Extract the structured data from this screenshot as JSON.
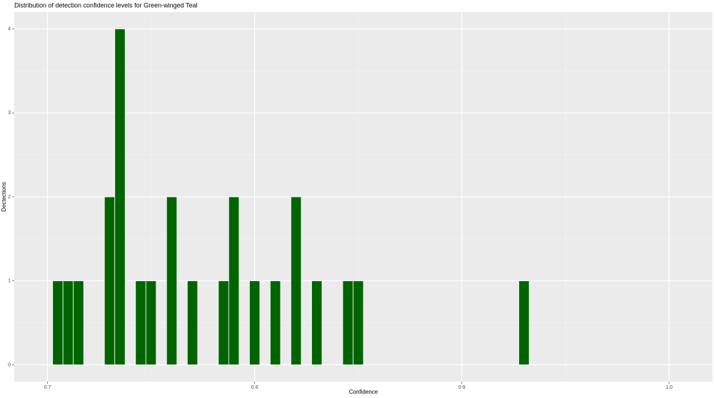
{
  "chart_data": {
    "type": "histogram",
    "title": "Distribution of detection confidence levels for Green-winged Teal",
    "x_label": "Confidence",
    "y_label": "Dectections",
    "bins": [
      0.7025,
      0.7075,
      0.7125,
      0.7175,
      0.7225,
      0.7275,
      0.7325,
      0.7375,
      0.7425,
      0.7475,
      0.7525,
      0.7575,
      0.7625,
      0.7675,
      0.7725,
      0.7775,
      0.7825,
      0.7875,
      0.7925,
      0.7975,
      0.8025,
      0.8075,
      0.8125,
      0.8175,
      0.8225,
      0.8275,
      0.8325,
      0.8375,
      0.8425,
      0.8475,
      0.8525,
      0.8575,
      0.8625,
      0.8675,
      0.8725,
      0.8775,
      0.8825,
      0.8875,
      0.8925,
      0.8975,
      0.9025,
      0.9075,
      0.9125,
      0.9175,
      0.9225,
      0.9275,
      0.9325
    ],
    "values": [
      1,
      1,
      1,
      0,
      0,
      2,
      4,
      0,
      1,
      1,
      0,
      2,
      0,
      1,
      0,
      0,
      1,
      2,
      0,
      1,
      0,
      1,
      0,
      2,
      0,
      1,
      0,
      0,
      1,
      1,
      0,
      0,
      0,
      0,
      0,
      0,
      0,
      0,
      0,
      0,
      0,
      0,
      0,
      0,
      0,
      1
    ],
    "color": "#006400",
    "xlim": [
      0.684,
      1.021
    ],
    "xticks": [
      0.7,
      0.8,
      0.9,
      {
        "value": 1,
        "label": "1.0"
      }
    ],
    "ylim": [
      -0.2,
      4.2
    ],
    "yticks": [
      0,
      1,
      2,
      3,
      4
    ],
    "grid": true
  }
}
